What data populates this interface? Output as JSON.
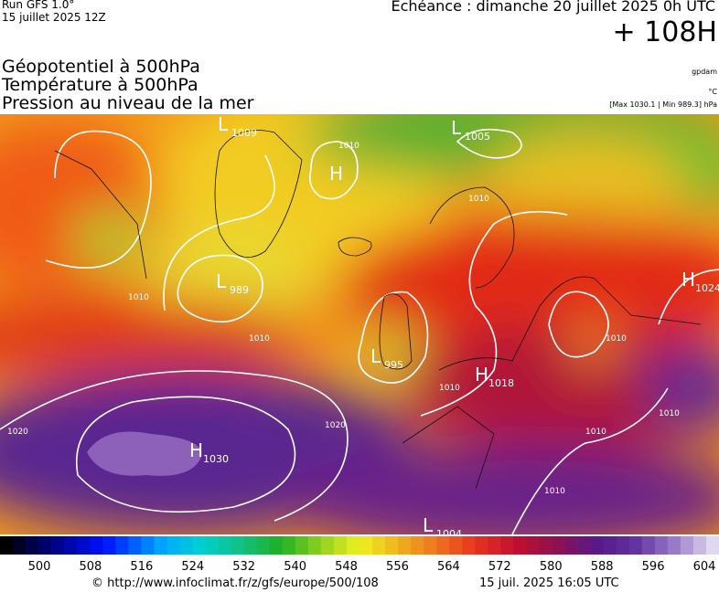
{
  "header": {
    "run": "Run GFS 1.0°",
    "run_date": "15 juillet 2025 12Z",
    "valid": "Echéance : dimanche 20 juillet 2025 0h UTC",
    "lead": "+ 108H",
    "fields": [
      "Géopotentiel à 500hPa",
      "Température à 500hPa",
      "Pression au niveau de la mer"
    ],
    "units": [
      "gpdam",
      "°C",
      "[Max 1030.1 | Min 989.3] hPa"
    ]
  },
  "map": {
    "centers": [
      {
        "letter": "L",
        "value": 1009
      },
      {
        "letter": "L",
        "value": 1005
      },
      {
        "letter": "H",
        "value": null
      },
      {
        "letter": "L",
        "value": 989
      },
      {
        "letter": "H",
        "value": 1024
      },
      {
        "letter": "L",
        "value": 995
      },
      {
        "letter": "H",
        "value": 1018
      },
      {
        "letter": "H",
        "value": 1030
      },
      {
        "letter": "L",
        "value": 1004
      }
    ],
    "isobar_labels": [
      1010,
      1010,
      1010,
      1010,
      1010,
      1010,
      1010,
      1020,
      1020,
      1010,
      1010
    ]
  },
  "legend": {
    "ticks": [
      500,
      508,
      516,
      524,
      532,
      540,
      548,
      556,
      564,
      572,
      580,
      588,
      596,
      604
    ]
  },
  "footer": {
    "url": "© http://www.infoclimat.fr/z/gfs/europe/500/108",
    "timestamp": "15 juil. 2025 16:05 UTC"
  }
}
